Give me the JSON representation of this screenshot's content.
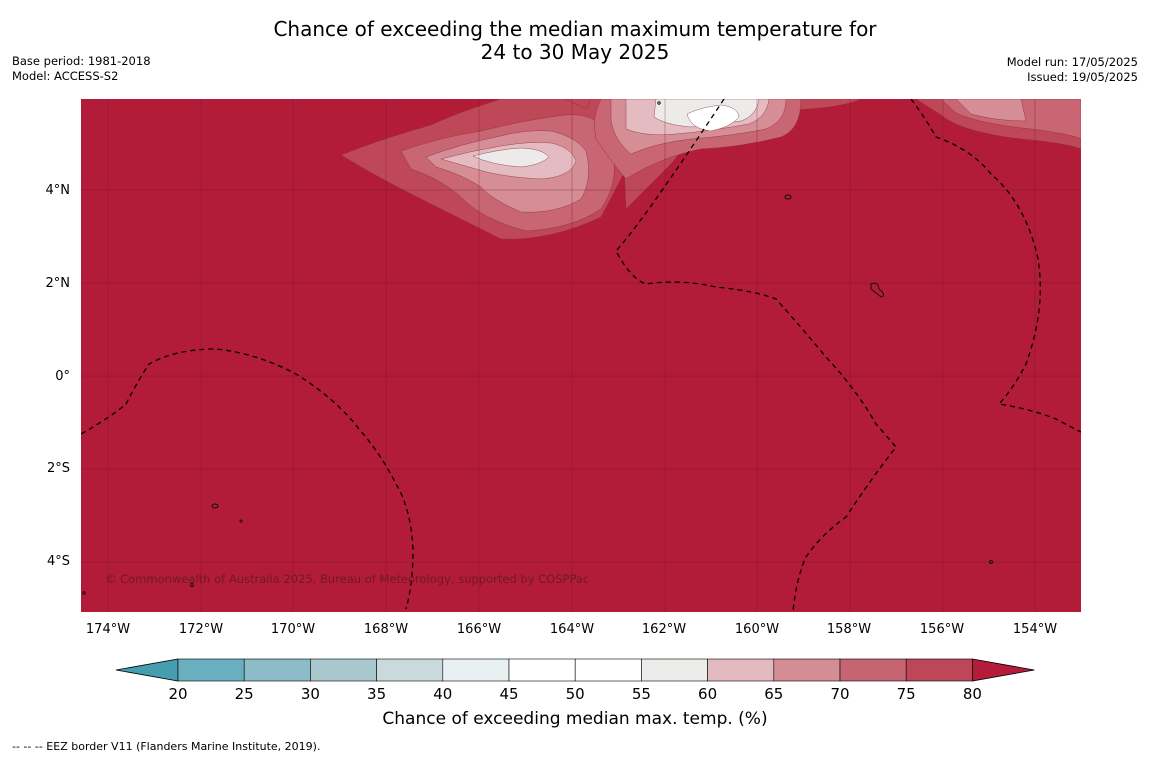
{
  "title_line1": "Chance of exceeding the median maximum temperature for",
  "title_line2": "24 to 30 May 2025",
  "meta_left": [
    "Base period: 1981-2018",
    "Model: ACCESS-S2"
  ],
  "meta_right": [
    "Model run: 17/05/2025",
    "Issued: 19/05/2025"
  ],
  "copyright": "© Commonwealth of Australia 2025, Bureau of Meteorology, supported by COSPPac",
  "lat_labels": [
    "4°N",
    "2°N",
    "0°",
    "2°S",
    "4°S"
  ],
  "lon_labels": [
    "174°W",
    "172°W",
    "170°W",
    "168°W",
    "166°W",
    "164°W",
    "162°W",
    "160°W",
    "158°W",
    "156°W",
    "154°W"
  ],
  "colorbar": {
    "ticks": [
      "20",
      "25",
      "30",
      "35",
      "40",
      "45",
      "50",
      "55",
      "60",
      "65",
      "70",
      "75",
      "80"
    ],
    "colors": [
      "#459daf",
      "#6aafbf",
      "#8bbcc7",
      "#a9c8ce",
      "#c9d9dc",
      "#e9f0f1",
      "#ffffff",
      "#ffffff",
      "#ececea",
      "#e2b9bf",
      "#d48c95",
      "#c66471",
      "#bd4658",
      "#b41c39"
    ],
    "label": "Chance of exceeding median max. temp. (%)"
  },
  "legend_note": "--  --  -- EEZ border V11 (Flanders Marine Institute, 2019).",
  "map_colors": {
    "base": "#b21c39",
    "level_75": "#bf4858",
    "level_70": "#c86673",
    "level_65": "#d58e96",
    "level_60": "#e3bbc0",
    "level_55": "#ecebea",
    "level_50": "#ffffff"
  }
}
